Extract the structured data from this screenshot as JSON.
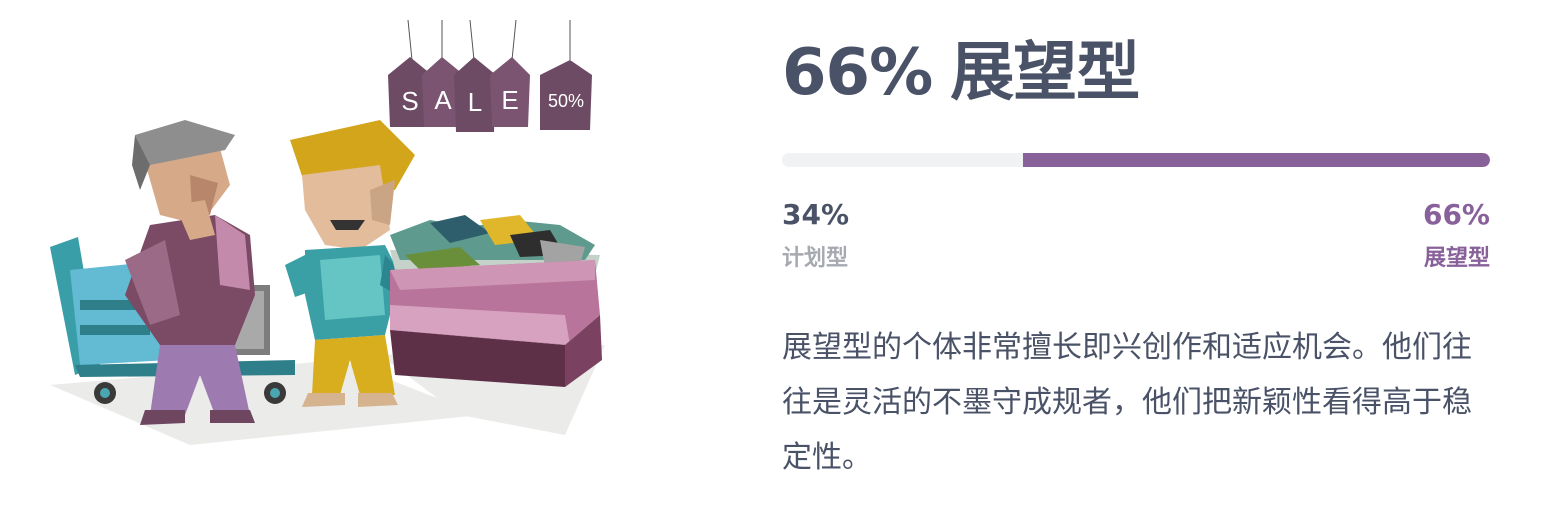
{
  "result": {
    "headline_percent": "66%",
    "headline_type": "展望型",
    "fill_percent": 66,
    "accent_color": "#88619a",
    "track_color": "#f1f2f3",
    "text_color": "#4a5267"
  },
  "scale": {
    "left": {
      "percent": "34%",
      "label": "计划型"
    },
    "right": {
      "percent": "66%",
      "label": "展望型"
    }
  },
  "description": "展望型的个体非常擅长即兴创作和适应机会。他们往往是灵活的不墨守成规者，他们把新颖性看得高于稳定性。",
  "illustration": {
    "tags": [
      "S",
      "A",
      "L",
      "E",
      "50%"
    ]
  }
}
